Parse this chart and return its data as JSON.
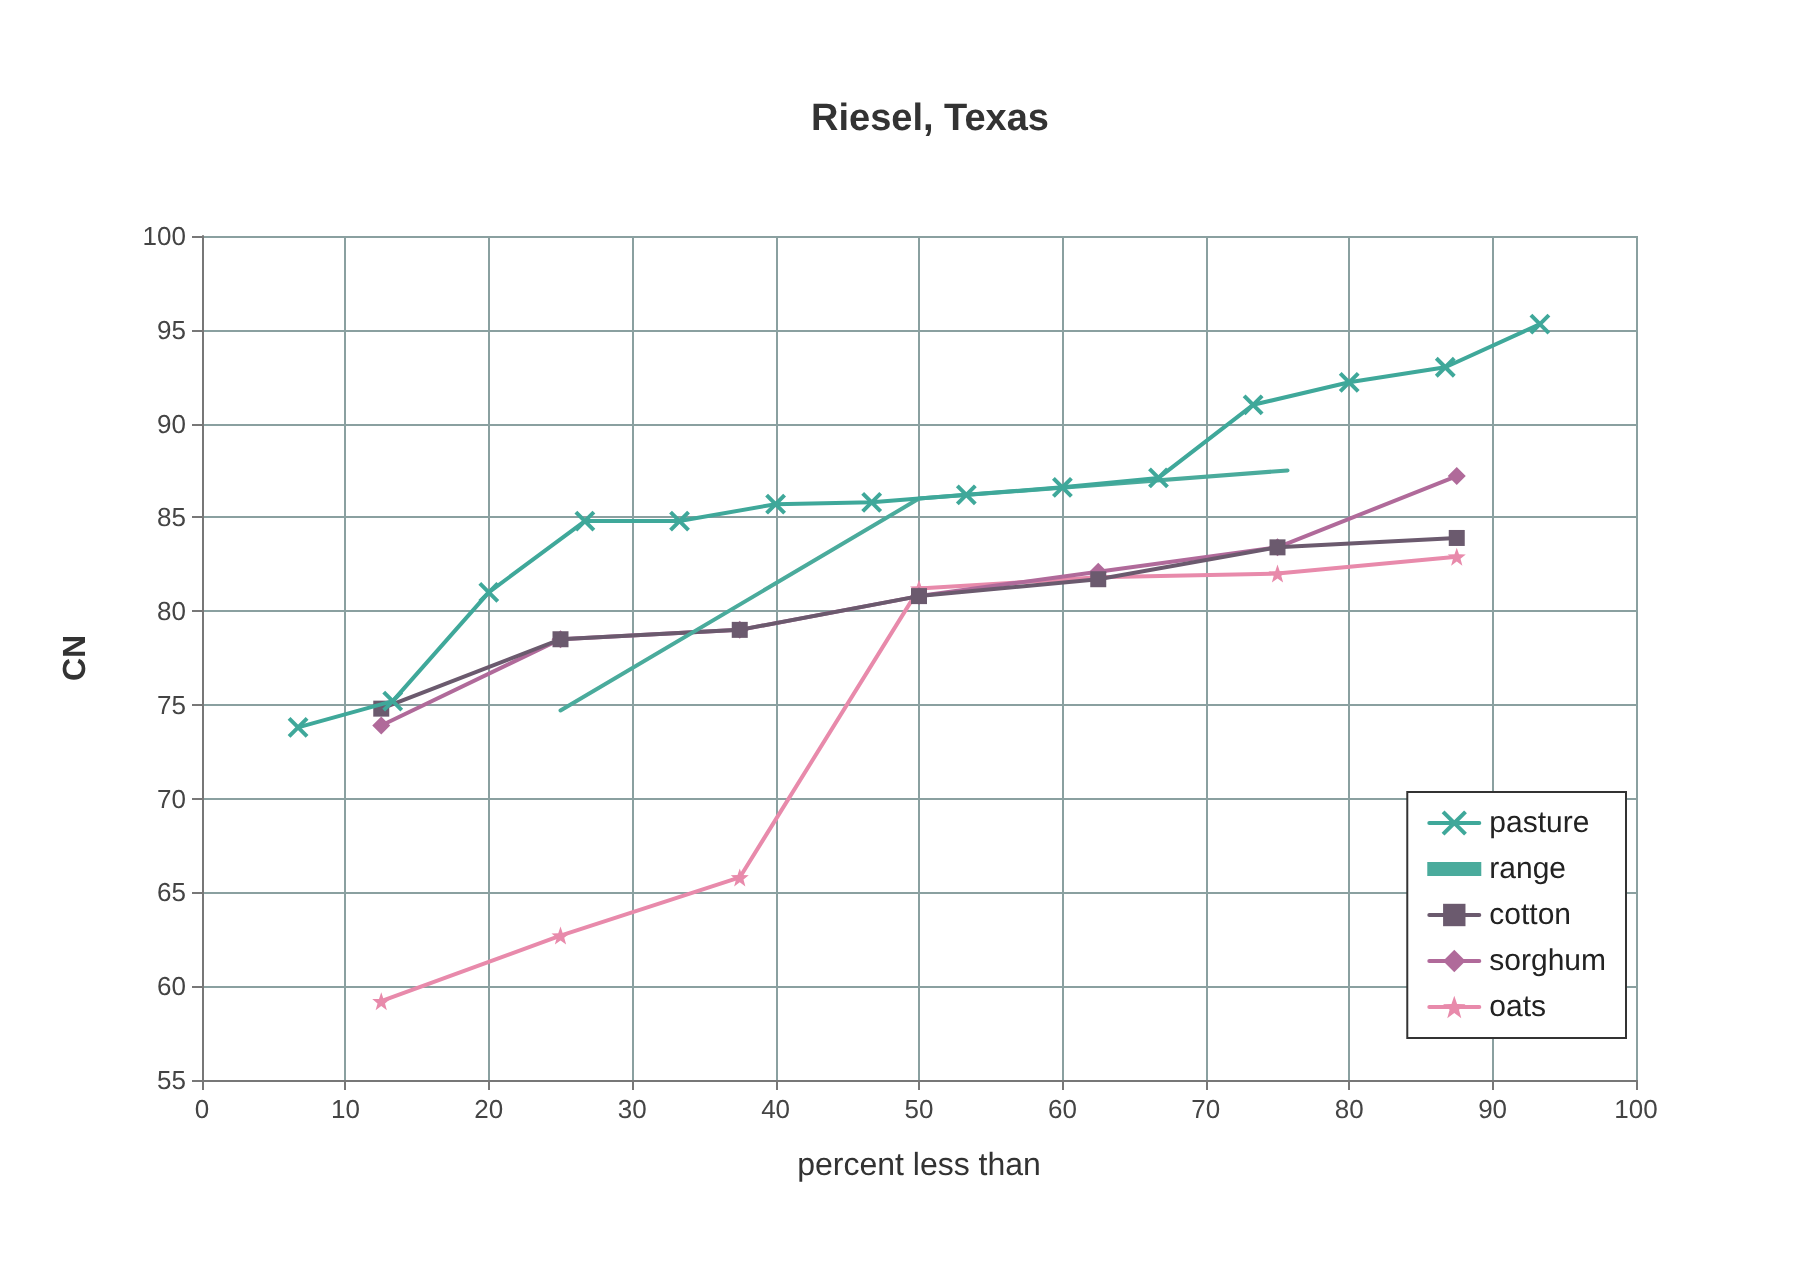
{
  "chart_data": {
    "type": "line",
    "title": "Riesel, Texas",
    "xlabel": "percent less than",
    "ylabel": "CN",
    "xlim": [
      0,
      100
    ],
    "xticks": [
      0,
      10,
      20,
      30,
      40,
      50,
      60,
      70,
      80,
      90,
      100
    ],
    "ylim": [
      55,
      100
    ],
    "yticks": [
      55,
      60,
      65,
      70,
      75,
      80,
      85,
      90,
      95,
      100
    ],
    "grid": true,
    "legend": "bottom right",
    "line_style": "solid",
    "series": [
      {
        "name": "pasture",
        "color": "#3fa89a",
        "marker": "cross",
        "x": [
          6.7,
          13.3,
          20,
          26.7,
          33.3,
          40,
          46.7,
          53.3,
          60,
          66.7,
          73.3,
          80,
          86.7,
          93.3
        ],
        "values": [
          73.8,
          75.2,
          81,
          84.8,
          84.8,
          85.7,
          85.8,
          86.2,
          86.6,
          87.1,
          91,
          92.2,
          93,
          95.3
        ]
      },
      {
        "name": "range",
        "color": "#4aab9c",
        "marker": "none",
        "x": [
          25,
          50,
          75.7
        ],
        "values": [
          74.7,
          86,
          87.5
        ]
      },
      {
        "name": "cotton",
        "color": "#6b5a6e",
        "marker": "square",
        "x": [
          12.5,
          25,
          37.5,
          50,
          62.5,
          75,
          87.5
        ],
        "values": [
          74.8,
          78.5,
          79,
          80.8,
          81.7,
          83.4,
          83.9
        ]
      },
      {
        "name": "sorghum",
        "color": "#b06a9a",
        "marker": "diamond",
        "x": [
          12.5,
          25,
          37.5,
          50,
          62.5,
          75,
          87.5
        ],
        "values": [
          73.9,
          78.5,
          79,
          80.8,
          82.1,
          83.4,
          87.2
        ]
      },
      {
        "name": "oats",
        "color": "#e88aab",
        "marker": "star",
        "x": [
          12.5,
          25,
          37.5,
          50,
          62.5,
          75,
          87.5
        ],
        "values": [
          59.2,
          62.7,
          65.8,
          81.2,
          81.8,
          82,
          82.9
        ]
      }
    ]
  }
}
